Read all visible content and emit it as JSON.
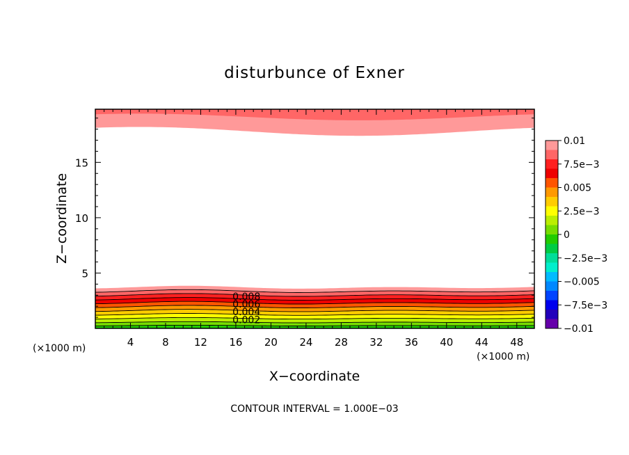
{
  "chart_data": {
    "type": "contour",
    "title": "disturbunce of Exner",
    "xlabel": "X−coordinate",
    "ylabel": "Z−coordinate",
    "x_unit_left": "(×1000 m)",
    "x_unit_right": "(×1000 m)",
    "xlim": [
      0,
      50
    ],
    "ylim": [
      0,
      19.8
    ],
    "x_ticks": [
      4,
      8,
      12,
      16,
      20,
      24,
      28,
      32,
      36,
      40,
      44,
      48
    ],
    "x_tick_labels": [
      "4",
      "8",
      "12",
      "16",
      "20",
      "24",
      "28",
      "32",
      "36",
      "40",
      "44",
      "48"
    ],
    "y_ticks": [
      5,
      10,
      15
    ],
    "y_tick_labels": [
      "5",
      "10",
      "15"
    ],
    "contour_interval_text": "CONTOUR INTERVAL = 1.000E−03",
    "contour_labels": [
      {
        "text": "0.008",
        "x": 18,
        "y": 2.9
      },
      {
        "text": "0.006",
        "x": 18,
        "y": 2.2
      },
      {
        "text": "0.004",
        "x": 18,
        "y": 1.5
      },
      {
        "text": "0.002",
        "x": 18,
        "y": 0.8
      }
    ],
    "colorbar": {
      "range": [
        -0.01,
        0.01
      ],
      "tick_values": [
        0.01,
        0.0075,
        0.005,
        0.0025,
        0,
        -0.0025,
        -0.005,
        -0.0075,
        -0.01
      ],
      "tick_labels": [
        "0.01",
        "7.5e−3",
        "0.005",
        "2.5e−3",
        "0",
        "−2.5e−3",
        "−0.005",
        "−7.5e−3",
        "−0.01"
      ],
      "colors": [
        "#ff9999",
        "#ff6666",
        "#ff2020",
        "#ee0000",
        "#ff5500",
        "#ff9900",
        "#ffcc00",
        "#ffff00",
        "#bbee00",
        "#77dd00",
        "#22cc00",
        "#00cc44",
        "#00dd99",
        "#00eecc",
        "#00bbff",
        "#0088ff",
        "#0044ff",
        "#0000ee",
        "#2200bb",
        "#6600aa"
      ]
    },
    "bands": [
      {
        "value": 0.01,
        "color": "#ff9999",
        "region": "bottom",
        "base_height": 3.7,
        "amplitude": 0.15
      },
      {
        "value": 0.009,
        "color": "#ff6666",
        "region": "bottom",
        "base_height": 3.35,
        "amplitude": 0.15
      },
      {
        "value": 0.008,
        "color": "#ff2020",
        "region": "bottom",
        "base_height": 3.0,
        "amplitude": 0.15
      },
      {
        "value": 0.007,
        "color": "#ee0000",
        "region": "bottom",
        "base_height": 2.65,
        "amplitude": 0.14
      },
      {
        "value": 0.006,
        "color": "#ff5500",
        "region": "bottom",
        "base_height": 2.3,
        "amplitude": 0.14
      },
      {
        "value": 0.005,
        "color": "#ff9900",
        "region": "bottom",
        "base_height": 1.95,
        "amplitude": 0.13
      },
      {
        "value": 0.004,
        "color": "#ffcc00",
        "region": "bottom",
        "base_height": 1.6,
        "amplitude": 0.12
      },
      {
        "value": 0.003,
        "color": "#ffff00",
        "region": "bottom",
        "base_height": 1.25,
        "amplitude": 0.1
      },
      {
        "value": 0.002,
        "color": "#bbee00",
        "region": "bottom",
        "base_height": 0.9,
        "amplitude": 0.08
      },
      {
        "value": 0.001,
        "color": "#77dd00",
        "region": "bottom",
        "base_height": 0.55,
        "amplitude": 0.06
      },
      {
        "value": 0.0,
        "color": "#22cc00",
        "region": "bottom",
        "base_height": 0.25,
        "amplitude": 0.04
      },
      {
        "value": 0.01,
        "color": "#ff9999",
        "region": "top",
        "base_height": 17.8,
        "amplitude": 0.4
      },
      {
        "value": 0.009,
        "color": "#ff6666",
        "region": "top",
        "base_height": 19.1,
        "amplitude": 0.3
      }
    ]
  }
}
